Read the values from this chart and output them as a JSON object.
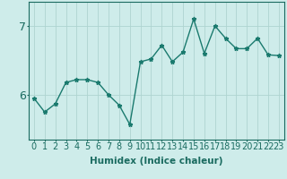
{
  "x": [
    0,
    1,
    2,
    3,
    4,
    5,
    6,
    7,
    8,
    9,
    10,
    11,
    12,
    13,
    14,
    15,
    16,
    17,
    18,
    19,
    20,
    21,
    22,
    23
  ],
  "y": [
    5.95,
    5.75,
    5.87,
    6.18,
    6.22,
    6.22,
    6.18,
    6.0,
    5.85,
    5.57,
    6.48,
    6.52,
    6.72,
    6.48,
    6.62,
    7.1,
    6.6,
    7.0,
    6.82,
    6.67,
    6.67,
    6.82,
    6.58,
    6.57
  ],
  "line_color": "#1a7a6e",
  "marker": "*",
  "marker_size": 3.5,
  "bg_color": "#ceecea",
  "grid_color": "#aed4d0",
  "axis_color": "#1a6b60",
  "xlabel": "Humidex (Indice chaleur)",
  "yticks": [
    6,
    7
  ],
  "ylim": [
    5.35,
    7.35
  ],
  "xlim": [
    -0.5,
    23.5
  ],
  "xlabel_fontsize": 7.5,
  "tick_fontsize": 7,
  "ytick_labels": [
    "6",
    "7"
  ],
  "line_width": 1.0
}
